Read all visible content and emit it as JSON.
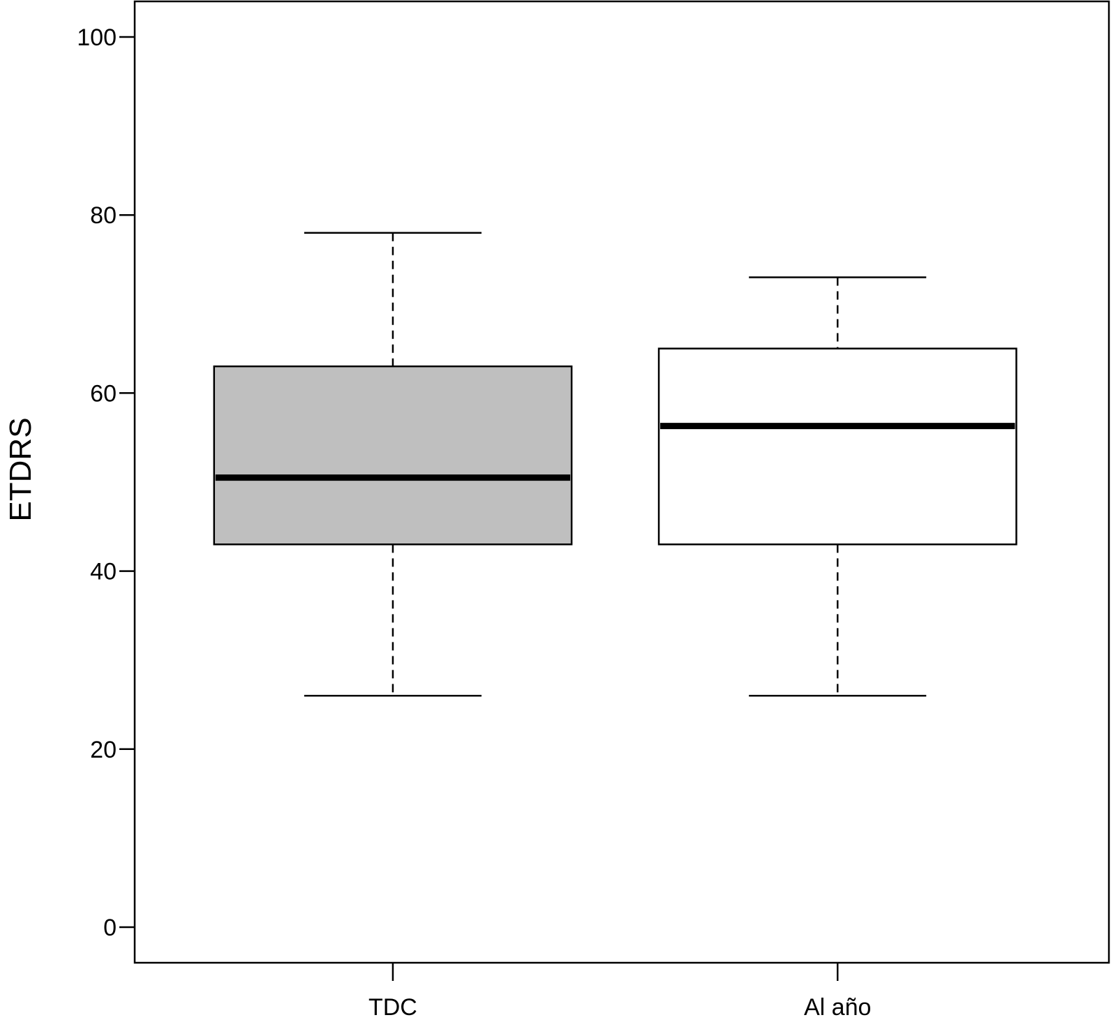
{
  "chart_data": {
    "type": "box",
    "xlabel": "",
    "ylabel": "ETDRS",
    "ylim": [
      -4,
      104
    ],
    "yticks": [
      0,
      20,
      40,
      60,
      80,
      100
    ],
    "categories": [
      "TDC",
      "Al año"
    ],
    "boxes": [
      {
        "category": "TDC",
        "min": 26,
        "q1": 43,
        "median": 50.5,
        "q3": 63,
        "max": 78,
        "fill": "#bfbfbf"
      },
      {
        "category": "Al año",
        "min": 26,
        "q1": 43,
        "median": 56.3,
        "q3": 65,
        "max": 73,
        "fill": "#ffffff"
      }
    ],
    "grid": false,
    "legend": "none"
  }
}
